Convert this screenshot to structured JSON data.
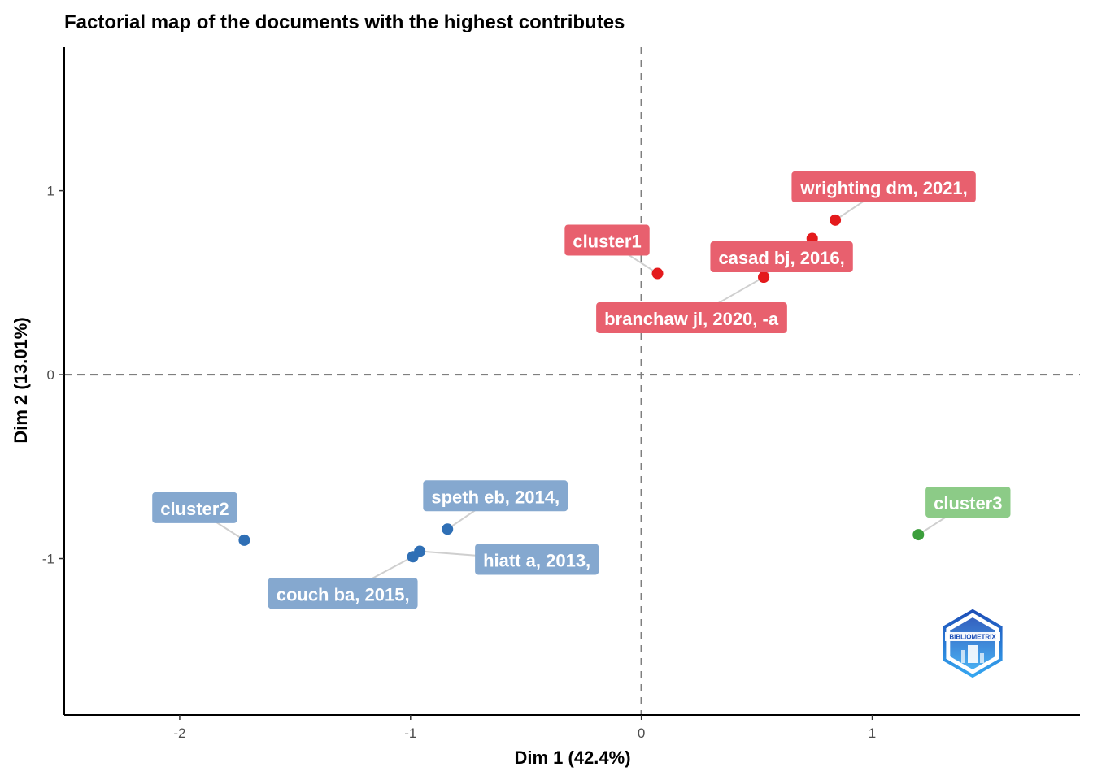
{
  "chart_data": {
    "type": "scatter",
    "title": "Factorial map of the documents with the highest contributes",
    "xlabel": "Dim 1 (42.4%)",
    "ylabel": "Dim 2 (13.01%)",
    "xlim": [
      -2.5,
      1.9
    ],
    "ylim": [
      -1.85,
      1.78
    ],
    "xticks": [
      -2,
      -1,
      0,
      1
    ],
    "xtick_labels": [
      "-2",
      "-1",
      "0",
      "1"
    ],
    "yticks": [
      -1,
      0,
      1
    ],
    "ytick_labels": [
      "-1",
      "0",
      "1"
    ],
    "grid": false,
    "reference_lines": {
      "x": 0,
      "y": 0,
      "style": "dashed"
    },
    "series": [
      {
        "name": "cluster1",
        "color": "#e41a1c",
        "label_color": "#e8606e",
        "points": [
          {
            "x": 0.07,
            "y": 0.55,
            "label": "cluster1"
          },
          {
            "x": 0.84,
            "y": 0.84,
            "label": "wrighting dm, 2021,"
          },
          {
            "x": 0.74,
            "y": 0.74,
            "label": ""
          },
          {
            "x": 0.53,
            "y": 0.53,
            "label": "casad bj, 2016,"
          },
          {
            "x": 0.53,
            "y": 0.53,
            "label": "branchaw jl, 2020, -a"
          }
        ]
      },
      {
        "name": "cluster2",
        "color": "#2f6fb5",
        "label_color": "#85a8cf",
        "points": [
          {
            "x": -1.72,
            "y": -0.9,
            "label": "cluster2"
          },
          {
            "x": -0.84,
            "y": -0.84,
            "label": "speth eb, 2014,"
          },
          {
            "x": -0.96,
            "y": -0.96,
            "label": "hiatt a, 2013,"
          },
          {
            "x": -0.99,
            "y": -0.99,
            "label": "couch ba, 2015,"
          }
        ]
      },
      {
        "name": "cluster3",
        "color": "#3b9e3b",
        "label_color": "#8ccb87",
        "points": [
          {
            "x": 1.2,
            "y": -0.87,
            "label": "cluster3"
          }
        ]
      }
    ],
    "watermark": {
      "text": "BIBLIOMETRIX",
      "icon": "bibliometrix-logo-icon",
      "colors": [
        "#1d4fb8",
        "#35a6f0"
      ]
    }
  }
}
